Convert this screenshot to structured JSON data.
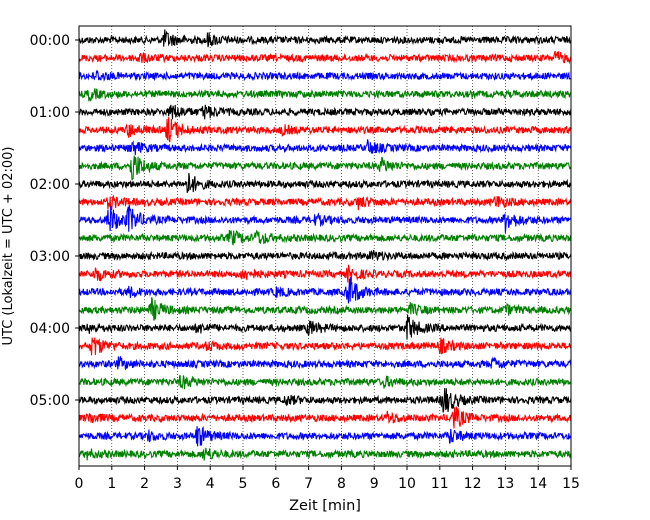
{
  "chart_data": {
    "type": "line",
    "xlabel": "Zeit  [min]",
    "ylabel": "UTC (Lokalzeit = UTC + 02:00)",
    "xlim": [
      0,
      15
    ],
    "x_ticks": [
      "0",
      "1",
      "2",
      "3",
      "4",
      "5",
      "6",
      "7",
      "8",
      "9",
      "10",
      "11",
      "12",
      "13",
      "14",
      "15"
    ],
    "y_ticks": [
      "00:00",
      "01:00",
      "02:00",
      "03:00",
      "04:00",
      "05:00"
    ],
    "grid": "vertical dotted at each minute",
    "trace_colors": [
      "#000000",
      "#ff0000",
      "#0000ff",
      "#008000"
    ],
    "traces": [
      {
        "start": "00:00",
        "color_index": 0,
        "events": [
          {
            "t": 2.6,
            "amp": 1.2
          },
          {
            "t": 3.9,
            "amp": 0.9
          }
        ]
      },
      {
        "start": "00:15",
        "color_index": 1,
        "events": [
          {
            "t": 1.8,
            "amp": 0.6
          },
          {
            "t": 14.5,
            "amp": 0.8
          }
        ]
      },
      {
        "start": "00:30",
        "color_index": 2,
        "events": [
          {
            "t": 0.5,
            "amp": 0.6
          }
        ]
      },
      {
        "start": "00:45",
        "color_index": 3,
        "events": [
          {
            "t": 0.3,
            "amp": 0.7
          }
        ]
      },
      {
        "start": "01:00",
        "color_index": 0,
        "events": [
          {
            "t": 2.8,
            "amp": 1.1
          },
          {
            "t": 3.8,
            "amp": 1.0
          }
        ]
      },
      {
        "start": "01:15",
        "color_index": 1,
        "events": [
          {
            "t": 2.7,
            "amp": 2.0
          },
          {
            "t": 1.5,
            "amp": 0.9
          },
          {
            "t": 6.2,
            "amp": 0.5
          }
        ]
      },
      {
        "start": "01:30",
        "color_index": 2,
        "events": [
          {
            "t": 1.6,
            "amp": 1.0
          },
          {
            "t": 8.8,
            "amp": 0.9
          }
        ]
      },
      {
        "start": "01:45",
        "color_index": 3,
        "events": [
          {
            "t": 1.6,
            "amp": 2.4
          },
          {
            "t": 9.2,
            "amp": 1.0
          }
        ]
      },
      {
        "start": "02:00",
        "color_index": 0,
        "events": [
          {
            "t": 3.3,
            "amp": 1.6
          }
        ]
      },
      {
        "start": "02:15",
        "color_index": 1,
        "events": [
          {
            "t": 0.9,
            "amp": 0.9
          },
          {
            "t": 8.5,
            "amp": 0.8
          },
          {
            "t": 12.7,
            "amp": 0.9
          }
        ]
      },
      {
        "start": "02:30",
        "color_index": 2,
        "events": [
          {
            "t": 0.9,
            "amp": 2.2
          },
          {
            "t": 1.5,
            "amp": 1.8
          },
          {
            "t": 13.0,
            "amp": 1.6
          },
          {
            "t": 7.2,
            "amp": 0.6
          }
        ]
      },
      {
        "start": "02:45",
        "color_index": 3,
        "events": [
          {
            "t": 4.6,
            "amp": 1.1
          },
          {
            "t": 5.4,
            "amp": 0.9
          }
        ]
      },
      {
        "start": "03:00",
        "color_index": 0,
        "events": [
          {
            "t": 8.9,
            "amp": 0.6
          }
        ]
      },
      {
        "start": "03:15",
        "color_index": 1,
        "events": [
          {
            "t": 0.5,
            "amp": 0.9
          },
          {
            "t": 5.0,
            "amp": 0.8
          },
          {
            "t": 8.2,
            "amp": 1.0
          }
        ]
      },
      {
        "start": "03:30",
        "color_index": 2,
        "events": [
          {
            "t": 8.2,
            "amp": 2.4
          },
          {
            "t": 1.5,
            "amp": 0.6
          },
          {
            "t": 6.0,
            "amp": 0.5
          }
        ]
      },
      {
        "start": "03:45",
        "color_index": 3,
        "events": [
          {
            "t": 2.2,
            "amp": 1.6
          },
          {
            "t": 10.1,
            "amp": 0.7
          },
          {
            "t": 13.0,
            "amp": 0.6
          }
        ]
      },
      {
        "start": "04:00",
        "color_index": 0,
        "events": [
          {
            "t": 10.0,
            "amp": 1.8
          },
          {
            "t": 7.0,
            "amp": 1.0
          },
          {
            "t": 3.6,
            "amp": 0.6
          },
          {
            "t": 0.3,
            "amp": 0.6
          }
        ]
      },
      {
        "start": "04:15",
        "color_index": 1,
        "events": [
          {
            "t": 0.4,
            "amp": 1.6
          },
          {
            "t": 11.0,
            "amp": 1.0
          },
          {
            "t": 3.9,
            "amp": 0.5
          }
        ]
      },
      {
        "start": "04:30",
        "color_index": 2,
        "events": [
          {
            "t": 1.2,
            "amp": 0.7
          },
          {
            "t": 12.6,
            "amp": 0.7
          }
        ]
      },
      {
        "start": "04:45",
        "color_index": 3,
        "events": [
          {
            "t": 3.1,
            "amp": 0.9
          },
          {
            "t": 9.3,
            "amp": 0.6
          }
        ]
      },
      {
        "start": "05:00",
        "color_index": 0,
        "events": [
          {
            "t": 11.1,
            "amp": 2.3
          },
          {
            "t": 6.3,
            "amp": 0.6
          }
        ]
      },
      {
        "start": "05:15",
        "color_index": 1,
        "events": [
          {
            "t": 11.4,
            "amp": 1.8
          },
          {
            "t": 9.4,
            "amp": 0.7
          },
          {
            "t": 0.3,
            "amp": 0.7
          }
        ]
      },
      {
        "start": "05:30",
        "color_index": 2,
        "events": [
          {
            "t": 3.6,
            "amp": 1.6
          },
          {
            "t": 11.3,
            "amp": 1.0
          },
          {
            "t": 2.1,
            "amp": 0.6
          }
        ]
      },
      {
        "start": "05:45",
        "color_index": 3,
        "events": [
          {
            "t": 3.8,
            "amp": 0.9
          },
          {
            "t": 0.2,
            "amp": 0.6
          }
        ]
      }
    ]
  }
}
